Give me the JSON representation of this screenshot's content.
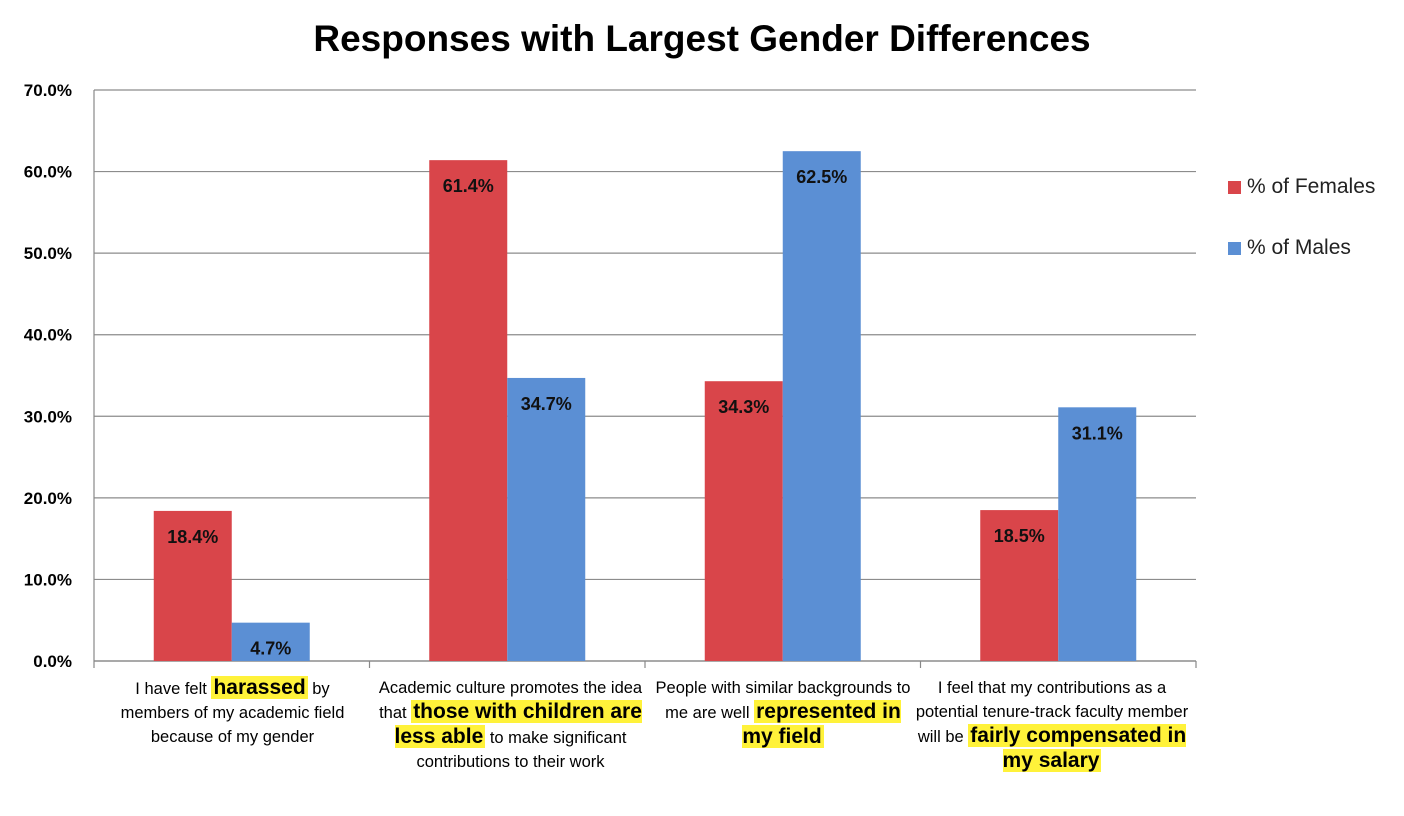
{
  "chart_data": {
    "type": "bar",
    "title": "Responses with Largest Gender Differences",
    "xlabel": "",
    "ylabel": "",
    "ylim": [
      0,
      70
    ],
    "yticks": [
      "0.0%",
      "10.0%",
      "20.0%",
      "30.0%",
      "40.0%",
      "50.0%",
      "60.0%",
      "70.0%"
    ],
    "grid": true,
    "legend_position": "right",
    "categories": [
      "I have felt harassed by members of my academic field because of my gender",
      "Academic culture promotes the idea that those with children are less able to make significant contributions to their work",
      "People with similar backgrounds to me are well represented in my field",
      "I feel that my contributions as a potential tenure-track faculty member will be fairly compensated in my salary"
    ],
    "category_parts": [
      [
        {
          "t": "I have felt ",
          "hl": false
        },
        {
          "t": "harassed",
          "hl": true
        },
        {
          "t": " by members of my academic field because of my gender",
          "hl": false
        }
      ],
      [
        {
          "t": "Academic culture promotes the idea that ",
          "hl": false
        },
        {
          "t": "those with children are less able",
          "hl": true
        },
        {
          "t": " to make significant contributions to their work",
          "hl": false
        }
      ],
      [
        {
          "t": "People with similar backgrounds to me are well ",
          "hl": false
        },
        {
          "t": "represented in my field",
          "hl": true
        }
      ],
      [
        {
          "t": "I feel that my contributions as a potential tenure-track faculty member will be ",
          "hl": false
        },
        {
          "t": "fairly compensated in my salary",
          "hl": true
        }
      ]
    ],
    "series": [
      {
        "name": "% of Females",
        "color": "#d9454a",
        "values": [
          18.4,
          61.4,
          34.3,
          18.5
        ],
        "labels": [
          "18.4%",
          "61.4%",
          "34.3%",
          "18.5%"
        ]
      },
      {
        "name": "% of Males",
        "color": "#5b8fd4",
        "values": [
          4.7,
          34.7,
          62.5,
          31.1
        ],
        "labels": [
          "4.7%",
          "34.7%",
          "62.5%",
          "31.1%"
        ]
      }
    ]
  }
}
